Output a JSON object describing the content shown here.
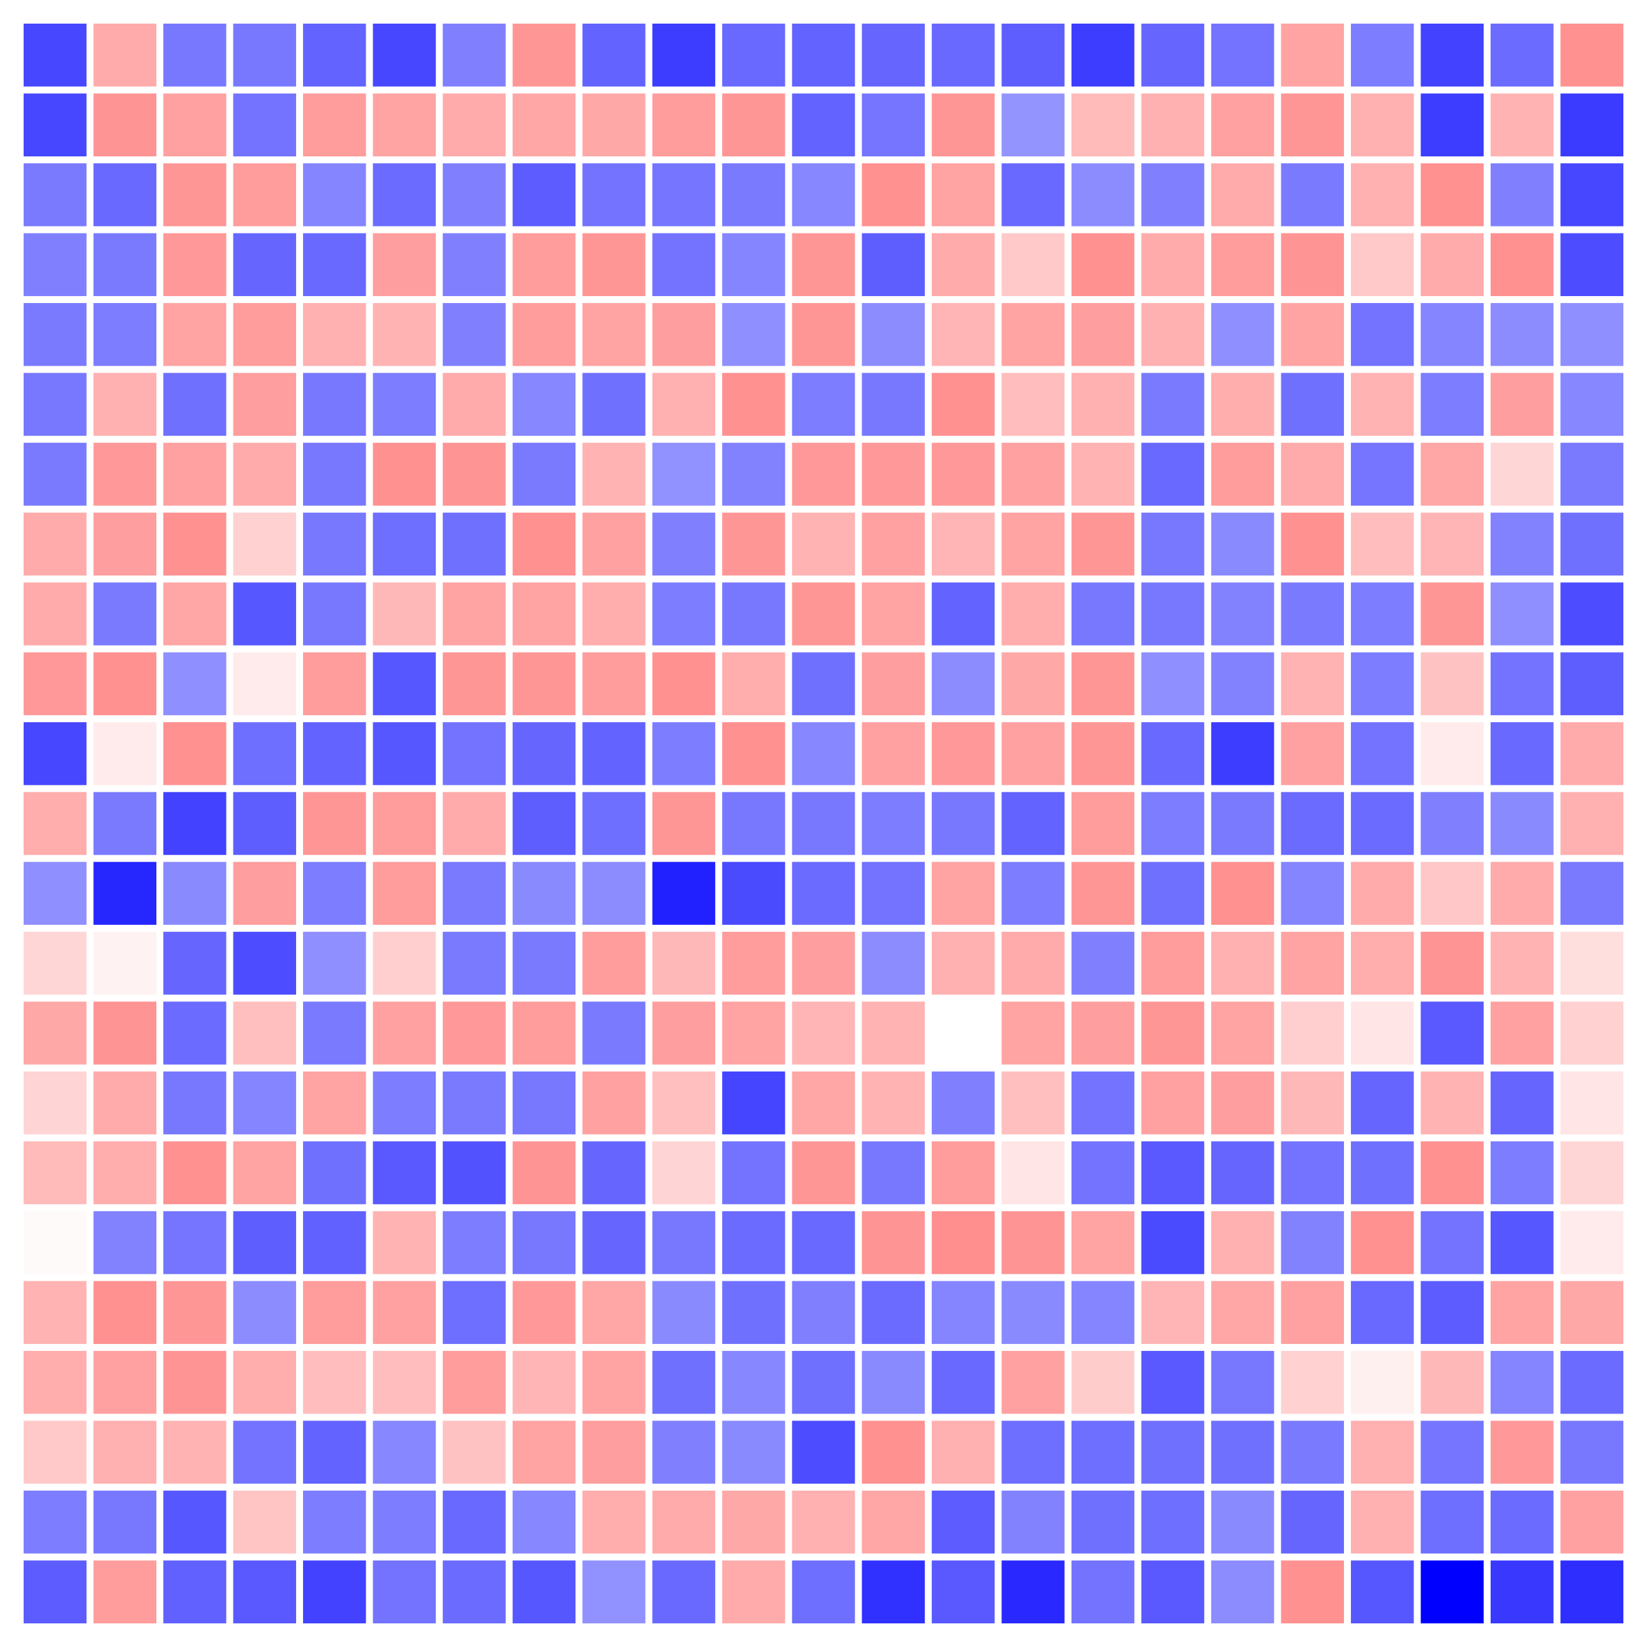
{
  "chart_data": {
    "type": "heatmap",
    "title": "",
    "xlabel": "",
    "ylabel": "",
    "colormap": "bwr",
    "color_low": "#0000ff",
    "color_mid": "#ffffff",
    "color_high": "#ff0000",
    "value_range": [
      -1,
      1
    ],
    "n_rows": 23,
    "n_cols": 23,
    "axes_visible": false,
    "grid_gap_color": "#ffffff",
    "values": [
      [
        -0.72,
        0.33,
        -0.53,
        -0.53,
        -0.61,
        -0.72,
        -0.5,
        0.41,
        -0.61,
        -0.76,
        -0.59,
        -0.61,
        -0.6,
        -0.59,
        -0.63,
        -0.76,
        -0.6,
        -0.55,
        0.36,
        -0.51,
        -0.74,
        -0.58,
        0.43
      ],
      [
        -0.72,
        0.42,
        0.37,
        -0.55,
        0.39,
        0.36,
        0.33,
        0.35,
        0.34,
        0.39,
        0.41,
        -0.61,
        -0.54,
        0.41,
        -0.42,
        0.27,
        0.31,
        0.37,
        0.41,
        0.31,
        -0.76,
        0.3,
        -0.77
      ],
      [
        -0.52,
        -0.59,
        0.41,
        0.39,
        -0.48,
        -0.58,
        -0.5,
        -0.64,
        -0.55,
        -0.54,
        -0.52,
        -0.47,
        0.43,
        0.36,
        -0.59,
        -0.45,
        -0.5,
        0.33,
        -0.52,
        0.31,
        0.43,
        -0.5,
        -0.72
      ],
      [
        -0.5,
        -0.52,
        0.4,
        -0.6,
        -0.59,
        0.38,
        -0.5,
        0.39,
        0.41,
        -0.55,
        -0.48,
        0.41,
        -0.63,
        0.33,
        0.21,
        0.43,
        0.33,
        0.39,
        0.42,
        0.21,
        0.33,
        0.43,
        -0.7
      ],
      [
        -0.52,
        -0.51,
        0.36,
        0.39,
        0.31,
        0.3,
        -0.5,
        0.39,
        0.36,
        0.38,
        -0.44,
        0.41,
        -0.45,
        0.29,
        0.36,
        0.38,
        0.31,
        -0.44,
        0.36,
        -0.55,
        -0.48,
        -0.45,
        -0.44
      ],
      [
        -0.53,
        0.31,
        -0.56,
        0.38,
        -0.53,
        -0.51,
        0.33,
        -0.47,
        -0.56,
        0.31,
        0.43,
        -0.51,
        -0.53,
        0.43,
        0.26,
        0.31,
        -0.52,
        0.32,
        -0.56,
        0.3,
        -0.51,
        0.38,
        -0.47
      ],
      [
        -0.52,
        0.4,
        0.37,
        0.33,
        -0.53,
        0.43,
        0.42,
        -0.52,
        0.3,
        -0.43,
        -0.49,
        0.4,
        0.4,
        0.4,
        0.37,
        0.3,
        -0.59,
        0.39,
        0.33,
        -0.54,
        0.35,
        0.16,
        -0.52
      ],
      [
        0.33,
        0.38,
        0.43,
        0.18,
        -0.53,
        -0.57,
        -0.56,
        0.43,
        0.37,
        -0.5,
        0.41,
        0.3,
        0.37,
        0.29,
        0.36,
        0.41,
        -0.53,
        -0.46,
        0.43,
        0.26,
        0.29,
        -0.49,
        -0.56
      ],
      [
        0.33,
        -0.52,
        0.35,
        -0.66,
        -0.53,
        0.28,
        0.36,
        0.36,
        0.32,
        -0.51,
        -0.53,
        0.41,
        0.36,
        -0.61,
        0.32,
        -0.53,
        -0.53,
        -0.49,
        -0.52,
        -0.51,
        0.41,
        -0.44,
        -0.7
      ],
      [
        0.4,
        0.43,
        -0.44,
        0.08,
        0.39,
        -0.66,
        0.41,
        0.41,
        0.39,
        0.43,
        0.32,
        -0.56,
        0.38,
        -0.45,
        0.34,
        0.41,
        -0.44,
        -0.49,
        0.3,
        -0.51,
        0.24,
        -0.55,
        -0.63
      ],
      [
        -0.72,
        0.08,
        0.43,
        -0.57,
        -0.61,
        -0.66,
        -0.55,
        -0.6,
        -0.61,
        -0.51,
        0.43,
        -0.47,
        0.37,
        0.4,
        0.37,
        0.41,
        -0.59,
        -0.76,
        0.37,
        -0.55,
        0.08,
        -0.59,
        0.33
      ],
      [
        0.32,
        -0.52,
        -0.74,
        -0.63,
        0.41,
        0.39,
        0.33,
        -0.63,
        -0.57,
        0.41,
        -0.53,
        -0.53,
        -0.51,
        -0.53,
        -0.61,
        0.39,
        -0.51,
        -0.52,
        -0.58,
        -0.58,
        -0.5,
        -0.46,
        0.31
      ],
      [
        -0.44,
        -0.85,
        -0.46,
        0.38,
        -0.51,
        0.39,
        -0.52,
        -0.46,
        -0.45,
        -0.87,
        -0.71,
        -0.58,
        -0.55,
        0.36,
        -0.51,
        0.41,
        -0.56,
        0.43,
        -0.48,
        0.33,
        0.22,
        0.33,
        -0.52
      ],
      [
        0.16,
        0.05,
        -0.6,
        -0.7,
        -0.44,
        0.19,
        -0.52,
        -0.52,
        0.39,
        0.28,
        0.39,
        0.38,
        -0.45,
        0.31,
        0.33,
        -0.5,
        0.39,
        0.31,
        0.36,
        0.32,
        0.42,
        0.3,
        0.13
      ],
      [
        0.34,
        0.42,
        -0.58,
        0.25,
        -0.52,
        0.37,
        0.4,
        0.39,
        -0.52,
        0.38,
        0.36,
        0.29,
        0.3,
        0.0,
        0.36,
        0.38,
        0.41,
        0.36,
        0.19,
        0.1,
        -0.65,
        0.37,
        0.18
      ],
      [
        0.17,
        0.33,
        -0.53,
        -0.48,
        0.36,
        -0.51,
        -0.52,
        -0.53,
        0.37,
        0.25,
        -0.73,
        0.35,
        0.3,
        -0.5,
        0.25,
        -0.55,
        0.37,
        0.38,
        0.28,
        -0.6,
        0.3,
        -0.6,
        0.1
      ],
      [
        0.27,
        0.32,
        0.43,
        0.36,
        -0.56,
        -0.65,
        -0.68,
        0.42,
        -0.6,
        0.17,
        -0.55,
        0.41,
        -0.53,
        0.39,
        0.1,
        -0.55,
        -0.65,
        -0.6,
        -0.55,
        -0.56,
        0.43,
        -0.51,
        0.16
      ],
      [
        0.02,
        -0.49,
        -0.54,
        -0.63,
        -0.62,
        0.3,
        -0.51,
        -0.53,
        -0.6,
        -0.53,
        -0.58,
        -0.59,
        0.42,
        0.44,
        0.42,
        0.36,
        -0.71,
        0.31,
        -0.49,
        0.43,
        -0.55,
        -0.66,
        0.08
      ],
      [
        0.3,
        0.43,
        0.41,
        -0.45,
        0.39,
        0.37,
        -0.57,
        0.4,
        0.35,
        -0.46,
        -0.56,
        -0.5,
        -0.58,
        -0.48,
        -0.46,
        -0.48,
        0.29,
        0.35,
        0.37,
        -0.59,
        -0.64,
        0.36,
        0.34
      ],
      [
        0.32,
        0.37,
        0.42,
        0.32,
        0.26,
        0.26,
        0.39,
        0.29,
        0.36,
        -0.56,
        -0.47,
        -0.56,
        -0.46,
        -0.59,
        0.37,
        0.2,
        -0.65,
        -0.53,
        0.18,
        0.06,
        0.28,
        -0.48,
        -0.58
      ],
      [
        0.21,
        0.31,
        0.3,
        -0.55,
        -0.61,
        -0.47,
        0.24,
        0.36,
        0.38,
        -0.5,
        -0.46,
        -0.7,
        0.43,
        0.31,
        -0.57,
        -0.57,
        -0.56,
        -0.56,
        -0.52,
        0.31,
        -0.54,
        0.4,
        -0.53
      ],
      [
        -0.51,
        -0.53,
        -0.66,
        0.23,
        -0.51,
        -0.51,
        -0.59,
        -0.47,
        0.32,
        0.33,
        0.34,
        0.31,
        0.35,
        -0.64,
        -0.49,
        -0.56,
        -0.57,
        -0.46,
        -0.6,
        0.31,
        -0.57,
        -0.58,
        0.37
      ],
      [
        -0.64,
        0.39,
        -0.62,
        -0.65,
        -0.74,
        -0.55,
        -0.58,
        -0.66,
        -0.43,
        -0.59,
        0.33,
        -0.57,
        -0.81,
        -0.65,
        -0.84,
        -0.55,
        -0.65,
        -0.45,
        0.43,
        -0.66,
        -1.0,
        -0.78,
        -0.82
      ]
    ]
  }
}
